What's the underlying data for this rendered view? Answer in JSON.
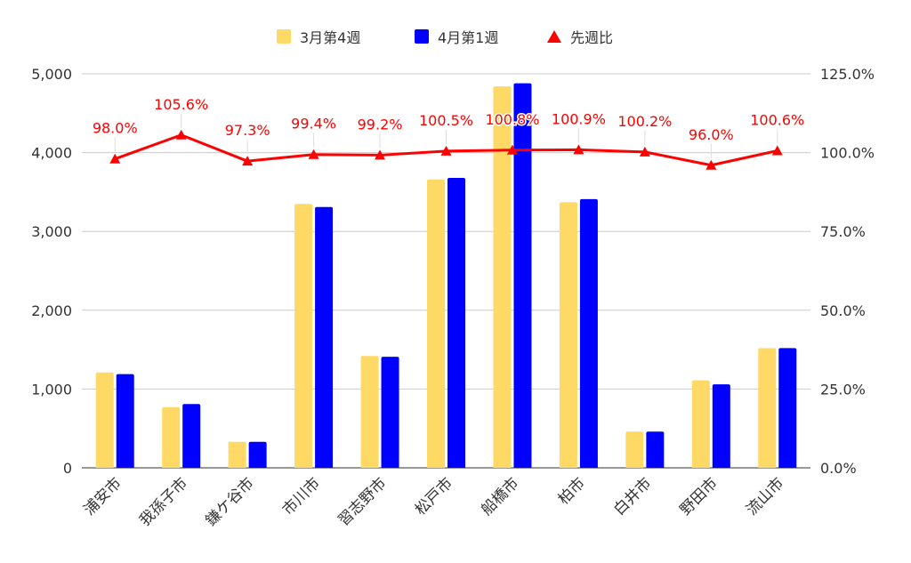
{
  "chart_data": {
    "type": "bar",
    "categories": [
      "浦安市",
      "我孫子市",
      "鎌ケ谷市",
      "市川市",
      "習志野市",
      "松戸市",
      "船橋市",
      "柏市",
      "白井市",
      "野田市",
      "流山市"
    ],
    "series": [
      {
        "name": "3月第4週",
        "type": "bar",
        "axis": "left",
        "color": "#FFD966",
        "values": [
          1210,
          770,
          330,
          3350,
          1420,
          3660,
          4840,
          3370,
          460,
          1110,
          1520
        ]
      },
      {
        "name": "4月第1週",
        "type": "bar",
        "axis": "left",
        "color": "#0000FF",
        "values": [
          1190,
          810,
          330,
          3310,
          1410,
          3680,
          4880,
          3410,
          460,
          1060,
          1520
        ]
      },
      {
        "name": "先週比",
        "type": "line",
        "axis": "right",
        "color": "#FF0000",
        "values": [
          98.0,
          105.6,
          97.3,
          99.4,
          99.2,
          100.5,
          100.8,
          100.9,
          100.2,
          96.0,
          100.6
        ],
        "labels": [
          "98.0%",
          "105.6%",
          "97.3%",
          "99.4%",
          "99.2%",
          "100.5%",
          "100.8%",
          "100.9%",
          "100.2%",
          "96.0%",
          "100.6%"
        ]
      }
    ],
    "ylim": [
      0,
      5000
    ],
    "y_ticks": [
      "0",
      "1,000",
      "2,000",
      "3,000",
      "4,000",
      "5,000"
    ],
    "y2lim": [
      0,
      125
    ],
    "y2_ticks": [
      "0.0%",
      "25.0%",
      "50.0%",
      "75.0%",
      "100.0%",
      "125.0%"
    ],
    "grid": true,
    "legend_position": "top"
  }
}
